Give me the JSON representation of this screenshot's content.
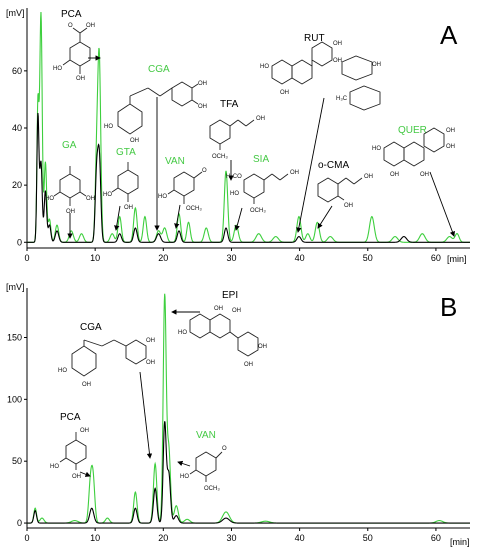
{
  "colors": {
    "green": "#3ecf3e",
    "black": "#000000",
    "label_green": "#44c944",
    "label_black": "#000000"
  },
  "chart_data": [
    {
      "type": "line",
      "panel": "A",
      "panel_label": "A",
      "xlabel": "[min]",
      "ylabel": "[mV]",
      "xlim": [
        0,
        65
      ],
      "ylim": [
        -2,
        82
      ],
      "x_ticks": [
        0,
        10,
        20,
        30,
        40,
        50,
        60
      ],
      "y_ticks": [
        0,
        20,
        40,
        60
      ],
      "grid": false,
      "series": [
        {
          "color": "green",
          "peaks": [
            {
              "t": 1.6,
              "h": 48,
              "w": 0.15
            },
            {
              "t": 2.05,
              "h": 80,
              "w": 0.18
            },
            {
              "t": 2.7,
              "h": 28,
              "w": 0.18
            },
            {
              "t": 3.3,
              "h": 8,
              "w": 0.2
            },
            {
              "t": 4.4,
              "h": 6,
              "w": 0.25
            },
            {
              "t": 6.5,
              "h": 4,
              "w": 0.3
            },
            {
              "t": 8.0,
              "h": 3,
              "w": 0.3
            },
            {
              "t": 10.2,
              "h": 26,
              "w": 0.2
            },
            {
              "t": 10.6,
              "h": 64,
              "w": 0.22
            },
            {
              "t": 12.5,
              "h": 3,
              "w": 0.3
            },
            {
              "t": 13.6,
              "h": 9,
              "w": 0.25
            },
            {
              "t": 15.9,
              "h": 12,
              "w": 0.25
            },
            {
              "t": 17.3,
              "h": 9,
              "w": 0.25
            },
            {
              "t": 19.3,
              "h": 4,
              "w": 0.3
            },
            {
              "t": 20.2,
              "h": 5,
              "w": 0.3
            },
            {
              "t": 22.3,
              "h": 10,
              "w": 0.25
            },
            {
              "t": 23.7,
              "h": 7,
              "w": 0.25
            },
            {
              "t": 26.3,
              "h": 5,
              "w": 0.3
            },
            {
              "t": 29.2,
              "h": 25,
              "w": 0.25
            },
            {
              "t": 30.7,
              "h": 6,
              "w": 0.3
            },
            {
              "t": 34.0,
              "h": 3,
              "w": 0.4
            },
            {
              "t": 36.5,
              "h": 2,
              "w": 0.4
            },
            {
              "t": 39.9,
              "h": 9,
              "w": 0.3
            },
            {
              "t": 41.2,
              "h": 3,
              "w": 0.3
            },
            {
              "t": 42.6,
              "h": 7,
              "w": 0.3
            },
            {
              "t": 44.5,
              "h": 2,
              "w": 0.4
            },
            {
              "t": 50.6,
              "h": 9,
              "w": 0.35
            },
            {
              "t": 54.0,
              "h": 2,
              "w": 0.4
            },
            {
              "t": 58.0,
              "h": 3,
              "w": 0.4
            },
            {
              "t": 62.0,
              "h": 2,
              "w": 0.4
            },
            {
              "t": 63.1,
              "h": 3,
              "w": 0.3
            }
          ]
        },
        {
          "color": "black",
          "peaks": [
            {
              "t": 1.6,
              "h": 44,
              "w": 0.15
            },
            {
              "t": 2.05,
              "h": 28,
              "w": 0.18
            },
            {
              "t": 2.7,
              "h": 18,
              "w": 0.18
            },
            {
              "t": 3.3,
              "h": 6,
              "w": 0.2
            },
            {
              "t": 4.4,
              "h": 4,
              "w": 0.25
            },
            {
              "t": 10.2,
              "h": 22,
              "w": 0.2
            },
            {
              "t": 10.6,
              "h": 30,
              "w": 0.22
            },
            {
              "t": 13.6,
              "h": 3,
              "w": 0.25
            },
            {
              "t": 15.9,
              "h": 5,
              "w": 0.25
            },
            {
              "t": 19.3,
              "h": 3,
              "w": 0.3
            },
            {
              "t": 22.3,
              "h": 4,
              "w": 0.25
            },
            {
              "t": 29.2,
              "h": 5,
              "w": 0.25
            },
            {
              "t": 39.9,
              "h": 2,
              "w": 0.3
            },
            {
              "t": 55.3,
              "h": 2,
              "w": 0.4
            }
          ]
        }
      ],
      "annotations": [
        {
          "text": "PCA",
          "color": "label_black"
        },
        {
          "text": "CGA",
          "color": "label_green"
        },
        {
          "text": "GA",
          "color": "label_green"
        },
        {
          "text": "GTA",
          "color": "label_green"
        },
        {
          "text": "VAN",
          "color": "label_green"
        },
        {
          "text": "TFA",
          "color": "label_black"
        },
        {
          "text": "SIA",
          "color": "label_green"
        },
        {
          "text": "RUT",
          "color": "label_black"
        },
        {
          "text": "o-CMA",
          "color": "label_black"
        },
        {
          "text": "QUER",
          "color": "label_green"
        }
      ]
    },
    {
      "type": "line",
      "panel": "B",
      "panel_label": "B",
      "xlabel": "[min]",
      "ylabel": "[mV]",
      "xlim": [
        0,
        65
      ],
      "ylim": [
        -4,
        190
      ],
      "x_ticks": [
        0,
        10,
        20,
        30,
        40,
        50,
        60
      ],
      "y_ticks": [
        0,
        50,
        100,
        150
      ],
      "grid": false,
      "series": [
        {
          "color": "green",
          "peaks": [
            {
              "t": 1.2,
              "h": 12,
              "w": 0.2
            },
            {
              "t": 2.2,
              "h": 4,
              "w": 0.3
            },
            {
              "t": 7.0,
              "h": 2,
              "w": 0.5
            },
            {
              "t": 9.3,
              "h": 30,
              "w": 0.25
            },
            {
              "t": 9.7,
              "h": 34,
              "w": 0.25
            },
            {
              "t": 11.8,
              "h": 4,
              "w": 0.3
            },
            {
              "t": 15.9,
              "h": 25,
              "w": 0.25
            },
            {
              "t": 18.8,
              "h": 48,
              "w": 0.25
            },
            {
              "t": 20.2,
              "h": 182,
              "w": 0.22
            },
            {
              "t": 20.8,
              "h": 60,
              "w": 0.25
            },
            {
              "t": 21.9,
              "h": 14,
              "w": 0.3
            },
            {
              "t": 23.5,
              "h": 3,
              "w": 0.4
            },
            {
              "t": 29.2,
              "h": 9,
              "w": 0.5
            },
            {
              "t": 35.0,
              "h": 1.5,
              "w": 0.6
            },
            {
              "t": 60.5,
              "h": 2,
              "w": 0.5
            }
          ]
        },
        {
          "color": "black",
          "peaks": [
            {
              "t": 1.2,
              "h": 10,
              "w": 0.2
            },
            {
              "t": 9.5,
              "h": 12,
              "w": 0.3
            },
            {
              "t": 15.9,
              "h": 12,
              "w": 0.25
            },
            {
              "t": 18.8,
              "h": 28,
              "w": 0.25
            },
            {
              "t": 20.2,
              "h": 80,
              "w": 0.22
            },
            {
              "t": 20.8,
              "h": 40,
              "w": 0.25
            },
            {
              "t": 21.9,
              "h": 6,
              "w": 0.3
            },
            {
              "t": 29.2,
              "h": 4,
              "w": 0.5
            }
          ]
        }
      ],
      "annotations": [
        {
          "text": "EPI",
          "color": "label_black"
        },
        {
          "text": "CGA",
          "color": "label_black"
        },
        {
          "text": "PCA",
          "color": "label_black"
        },
        {
          "text": "VAN",
          "color": "label_green"
        }
      ]
    }
  ],
  "atom_labels": {
    "OH": "OH",
    "HO": "HO",
    "O": "O",
    "OCH3": "OCH₃",
    "H3CO": "H₃CO",
    "H3C": "H₃C"
  }
}
